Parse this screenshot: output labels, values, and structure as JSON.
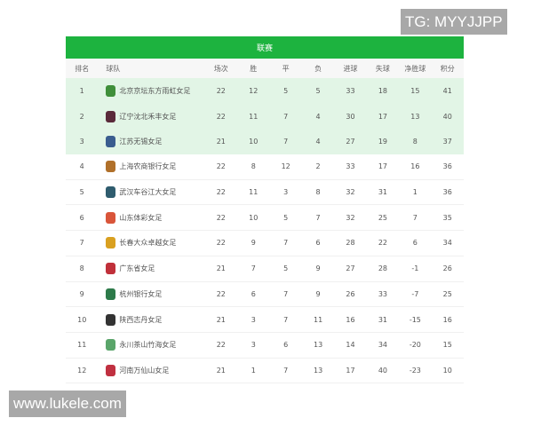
{
  "watermarks": {
    "top_right": "TG: MYYJJPP",
    "bottom_left": "www.lukele.com"
  },
  "colors": {
    "header": "#1db33f",
    "highlight": "#e2f5e6"
  },
  "table": {
    "title": "联赛",
    "columns": [
      "排名",
      "球队",
      "场次",
      "胜",
      "平",
      "负",
      "进球",
      "失球",
      "净胜球",
      "积分"
    ],
    "rows": [
      {
        "rank": "1",
        "team": "北京京坛东方雨虹女足",
        "logo": "#3f8f3a",
        "played": "22",
        "w": "12",
        "d": "5",
        "l": "5",
        "gf": "33",
        "ga": "18",
        "gd": "15",
        "pts": "41"
      },
      {
        "rank": "2",
        "team": "辽宁沈北禾丰女足",
        "logo": "#5a2a3a",
        "played": "22",
        "w": "11",
        "d": "7",
        "l": "4",
        "gf": "30",
        "ga": "17",
        "gd": "13",
        "pts": "40"
      },
      {
        "rank": "3",
        "team": "江苏无锡女足",
        "logo": "#3a5d8f",
        "played": "21",
        "w": "10",
        "d": "7",
        "l": "4",
        "gf": "27",
        "ga": "19",
        "gd": "8",
        "pts": "37"
      },
      {
        "rank": "4",
        "team": "上海农商银行女足",
        "logo": "#b0702a",
        "played": "22",
        "w": "8",
        "d": "12",
        "l": "2",
        "gf": "33",
        "ga": "17",
        "gd": "16",
        "pts": "36"
      },
      {
        "rank": "5",
        "team": "武汉车谷江大女足",
        "logo": "#2f5c6e",
        "played": "22",
        "w": "11",
        "d": "3",
        "l": "8",
        "gf": "32",
        "ga": "31",
        "gd": "1",
        "pts": "36"
      },
      {
        "rank": "6",
        "team": "山东体彩女足",
        "logo": "#d9553a",
        "played": "22",
        "w": "10",
        "d": "5",
        "l": "7",
        "gf": "32",
        "ga": "25",
        "gd": "7",
        "pts": "35"
      },
      {
        "rank": "7",
        "team": "长春大众卓越女足",
        "logo": "#d9a020",
        "played": "22",
        "w": "9",
        "d": "7",
        "l": "6",
        "gf": "28",
        "ga": "22",
        "gd": "6",
        "pts": "34"
      },
      {
        "rank": "8",
        "team": "广东省女足",
        "logo": "#c0303a",
        "played": "21",
        "w": "7",
        "d": "5",
        "l": "9",
        "gf": "27",
        "ga": "28",
        "gd": "-1",
        "pts": "26"
      },
      {
        "rank": "9",
        "team": "杭州银行女足",
        "logo": "#2d7a4a",
        "played": "22",
        "w": "6",
        "d": "7",
        "l": "9",
        "gf": "26",
        "ga": "33",
        "gd": "-7",
        "pts": "25"
      },
      {
        "rank": "10",
        "team": "陕西志丹女足",
        "logo": "#333333",
        "played": "21",
        "w": "3",
        "d": "7",
        "l": "11",
        "gf": "16",
        "ga": "31",
        "gd": "-15",
        "pts": "16"
      },
      {
        "rank": "11",
        "team": "永川茶山竹海女足",
        "logo": "#5aa56a",
        "played": "22",
        "w": "3",
        "d": "6",
        "l": "13",
        "gf": "14",
        "ga": "34",
        "gd": "-20",
        "pts": "15"
      },
      {
        "rank": "12",
        "team": "河南万仙山女足",
        "logo": "#c03040",
        "played": "21",
        "w": "1",
        "d": "7",
        "l": "13",
        "gf": "17",
        "ga": "40",
        "gd": "-23",
        "pts": "10"
      }
    ]
  }
}
